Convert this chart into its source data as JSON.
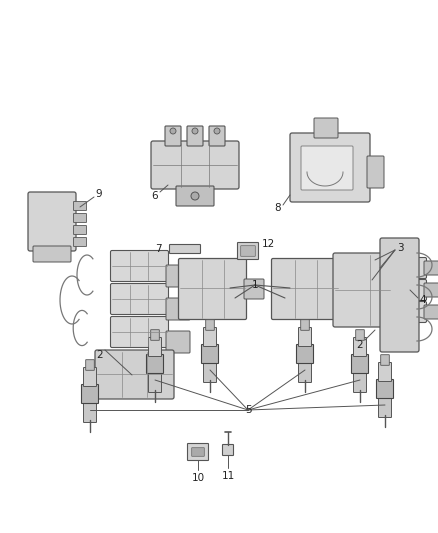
{
  "background_color": "#ffffff",
  "fig_width": 4.38,
  "fig_height": 5.33,
  "dpi": 100,
  "image_b64": ""
}
